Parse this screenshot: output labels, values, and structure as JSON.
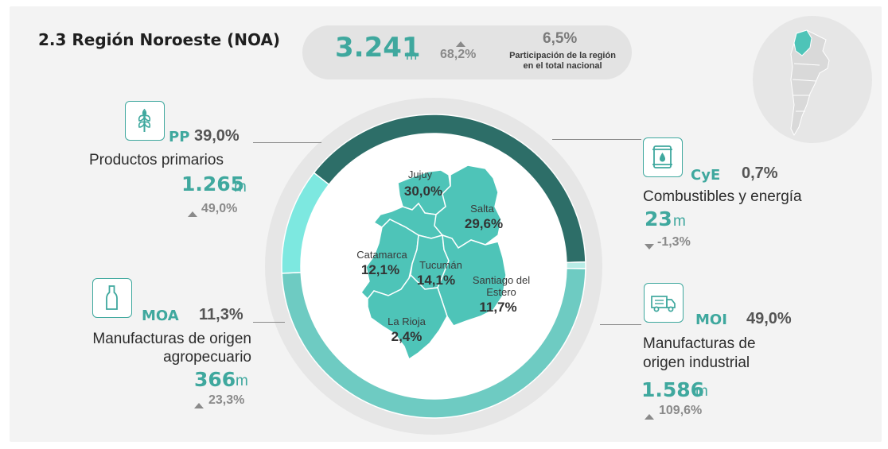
{
  "header": {
    "title": "2.3 Región Noroeste (NOA)",
    "total_value": "3.241",
    "total_unit": "m",
    "total_growth": "68,2%",
    "share_value": "6,5%",
    "share_label_line1": "Participación de la región",
    "share_label_line2": "en el total nacional"
  },
  "colors": {
    "pp": "#2d6e68",
    "cye": "#b8ece6",
    "moi": "#6ecbc2",
    "moa": "#7de8e0",
    "accent": "#3fa89e",
    "map_fill": "#4ec4b8"
  },
  "categories": {
    "pp": {
      "code": "PP",
      "pct": "39,0%",
      "label": "Productos primarios",
      "value": "1.265",
      "unit": "m",
      "growth": "49,0%",
      "growth_dir": "up",
      "icon": "wheat-icon"
    },
    "cye": {
      "code": "CyE",
      "pct": "0,7%",
      "label": "Combustibles y energía",
      "value": "23",
      "unit": "m",
      "growth": "-1,3%",
      "growth_dir": "down",
      "icon": "fuel-barrel-icon"
    },
    "moa": {
      "code": "MOA",
      "pct": "11,3%",
      "label_line1": "Manufacturas de origen",
      "label_line2": "agropecuario",
      "value": "366",
      "unit": "m",
      "growth": "23,3%",
      "growth_dir": "up",
      "icon": "bottle-icon"
    },
    "moi": {
      "code": "MOI",
      "pct": "49,0%",
      "label_line1": "Manufacturas de",
      "label_line2": "origen industrial",
      "value": "1.586",
      "unit": "m",
      "growth": "109,6%",
      "growth_dir": "up",
      "icon": "truck-icon"
    }
  },
  "regions": {
    "jujuy": {
      "name": "Jujuy",
      "pct": "30,0%"
    },
    "salta": {
      "name": "Salta",
      "pct": "29,6%"
    },
    "catamarca": {
      "name": "Catamarca",
      "pct": "12,1%"
    },
    "tucuman": {
      "name": "Tucumán",
      "pct": "14,1%"
    },
    "santiago": {
      "name_line1": "Santiago del",
      "name_line2": "Estero",
      "pct": "11,7%"
    },
    "larioja": {
      "name": "La Rioja",
      "pct": "2,4%"
    }
  },
  "chart_data": {
    "type": "pie",
    "categories": [
      "PP",
      "CyE",
      "MOI",
      "MOA"
    ],
    "values": [
      39.0,
      0.7,
      49.0,
      11.3
    ]
  }
}
